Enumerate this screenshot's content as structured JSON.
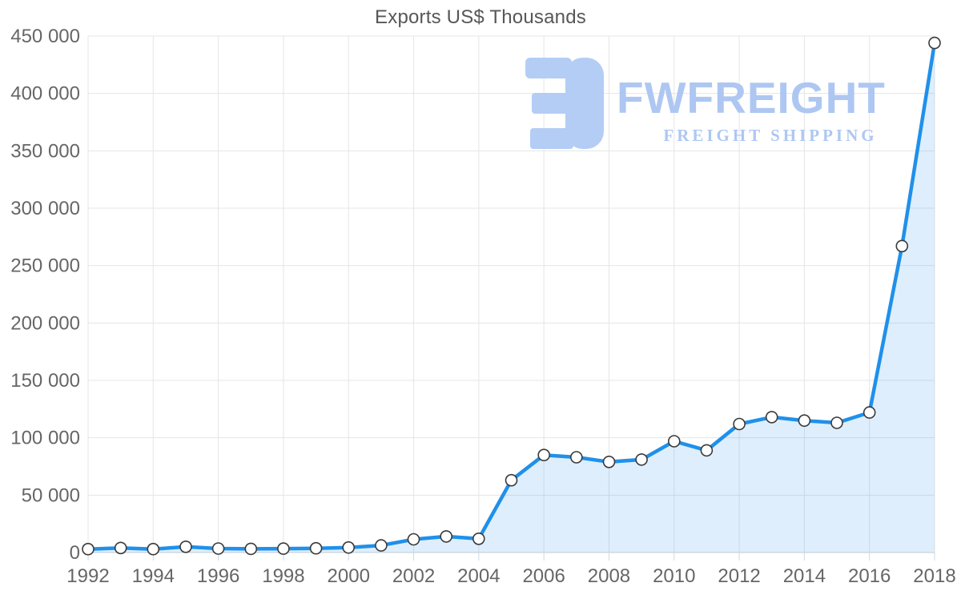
{
  "watermark": {
    "brand": "FWFREIGHT",
    "tagline": "FREIGHT SHIPPING",
    "logo_icon": "fwfreight-logo",
    "text_color": "#aec7f2",
    "logo_color": "#b3cdf5"
  },
  "colors": {
    "line": "#2090ea",
    "area_fill": "rgba(32,144,234,0.15)",
    "marker_fill": "#ffffff",
    "marker_stroke": "#3a3a3a",
    "grid": "#e5e5e5",
    "axis_line": "#d2d2d2",
    "tick": "#cdd8e3",
    "label": "#666666",
    "title": "#575757"
  },
  "chart_data": {
    "type": "area",
    "title": "Exports US$ Thousands",
    "xlabel": "",
    "ylabel": "",
    "x": [
      1992,
      1993,
      1994,
      1995,
      1996,
      1997,
      1998,
      1999,
      2000,
      2001,
      2002,
      2003,
      2004,
      2005,
      2006,
      2007,
      2008,
      2009,
      2010,
      2011,
      2012,
      2013,
      2014,
      2015,
      2016,
      2017,
      2018
    ],
    "values": [
      3000,
      4000,
      3000,
      5000,
      3500,
      3200,
      3400,
      3700,
      4400,
      6200,
      11500,
      14000,
      12000,
      63000,
      85000,
      83000,
      79000,
      81000,
      97000,
      89000,
      112000,
      118000,
      115000,
      113000,
      122000,
      267000,
      444000
    ],
    "x_tick_labels": [
      "1992",
      "1994",
      "1996",
      "1998",
      "2000",
      "2002",
      "2004",
      "2006",
      "2008",
      "2010",
      "2012",
      "2014",
      "2016",
      "2018"
    ],
    "y_tick_labels": [
      "0",
      "50 000",
      "100 000",
      "150 000",
      "200 000",
      "250 000",
      "300 000",
      "350 000",
      "400 000",
      "450 000"
    ],
    "ylim": [
      0,
      450000
    ],
    "y_tick_step": 50000,
    "grid": true,
    "legend": "none",
    "marker": "circle",
    "line_smoothing": "none"
  }
}
